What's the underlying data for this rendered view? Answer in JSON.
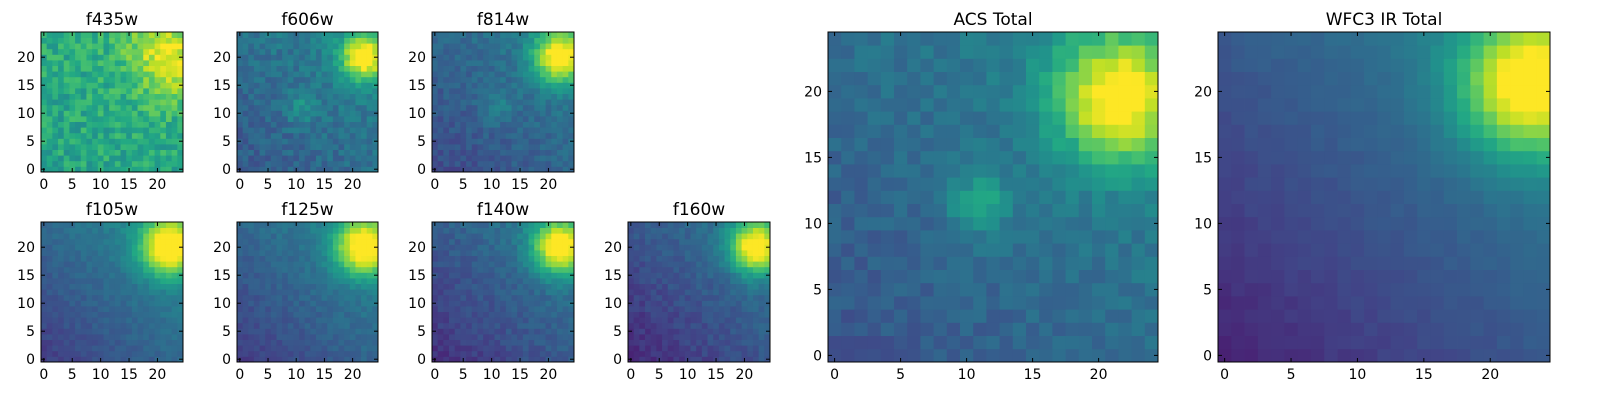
{
  "colormap": "viridis",
  "background_color": "#ffffff",
  "chart_data": [
    {
      "type": "heatmap",
      "title": "f435w",
      "xlabel": "",
      "ylabel": "",
      "xlim": [
        -0.5,
        24.5
      ],
      "ylim": [
        -0.5,
        24.5
      ],
      "xticks": [
        0,
        5,
        10,
        15,
        20
      ],
      "yticks": [
        0,
        5,
        10,
        15,
        20
      ],
      "shape": [
        25,
        25
      ],
      "description_of_values": "normalized intensity 0-1, noisy, brighter toward upper-right",
      "features": [
        {
          "cx": 22,
          "cy": 20,
          "sigma": 5,
          "amp": 0.35
        }
      ],
      "base": 0.58,
      "gradient": 0.05,
      "noise": 0.22,
      "seed": 11
    },
    {
      "type": "heatmap",
      "title": "f606w",
      "xlabel": "",
      "ylabel": "",
      "xlim": [
        -0.5,
        24.5
      ],
      "ylim": [
        -0.5,
        24.5
      ],
      "xticks": [
        0,
        5,
        10,
        15,
        20
      ],
      "yticks": [
        0,
        5,
        10,
        15,
        20
      ],
      "shape": [
        25,
        25
      ],
      "features": [
        {
          "cx": 22,
          "cy": 20,
          "sigma": 3,
          "amp": 0.65
        },
        {
          "cx": 11,
          "cy": 11,
          "sigma": 2,
          "amp": 0.15
        }
      ],
      "base": 0.28,
      "gradient": 0.18,
      "noise": 0.14,
      "seed": 23
    },
    {
      "type": "heatmap",
      "title": "f814w",
      "xlabel": "",
      "ylabel": "",
      "xlim": [
        -0.5,
        24.5
      ],
      "ylim": [
        -0.5,
        24.5
      ],
      "xticks": [
        0,
        5,
        10,
        15,
        20
      ],
      "yticks": [
        0,
        5,
        10,
        15,
        20
      ],
      "shape": [
        25,
        25
      ],
      "features": [
        {
          "cx": 22,
          "cy": 20,
          "sigma": 3.2,
          "amp": 0.7
        },
        {
          "cx": 11,
          "cy": 11,
          "sigma": 2,
          "amp": 0.12
        }
      ],
      "base": 0.22,
      "gradient": 0.22,
      "noise": 0.11,
      "seed": 37
    },
    {
      "type": "heatmap",
      "title": "f105w",
      "xlabel": "",
      "ylabel": "",
      "xlim": [
        -0.5,
        24.5
      ],
      "ylim": [
        -0.5,
        24.5
      ],
      "xticks": [
        0,
        5,
        10,
        15,
        20
      ],
      "yticks": [
        0,
        5,
        10,
        15,
        20
      ],
      "shape": [
        25,
        25
      ],
      "features": [
        {
          "cx": 22,
          "cy": 20,
          "sigma": 3.5,
          "amp": 0.7
        }
      ],
      "base": 0.18,
      "gradient": 0.32,
      "noise": 0.07,
      "seed": 41
    },
    {
      "type": "heatmap",
      "title": "f125w",
      "xlabel": "",
      "ylabel": "",
      "xlim": [
        -0.5,
        24.5
      ],
      "ylim": [
        -0.5,
        24.5
      ],
      "xticks": [
        0,
        5,
        10,
        15,
        20
      ],
      "yticks": [
        0,
        5,
        10,
        15,
        20
      ],
      "shape": [
        25,
        25
      ],
      "features": [
        {
          "cx": 22,
          "cy": 20,
          "sigma": 3.5,
          "amp": 0.7
        }
      ],
      "base": 0.18,
      "gradient": 0.3,
      "noise": 0.08,
      "seed": 53
    },
    {
      "type": "heatmap",
      "title": "f140w",
      "xlabel": "",
      "ylabel": "",
      "xlim": [
        -0.5,
        24.5
      ],
      "ylim": [
        -0.5,
        24.5
      ],
      "xticks": [
        0,
        5,
        10,
        15,
        20
      ],
      "yticks": [
        0,
        5,
        10,
        15,
        20
      ],
      "shape": [
        25,
        25
      ],
      "features": [
        {
          "cx": 22,
          "cy": 20,
          "sigma": 3.3,
          "amp": 0.72
        }
      ],
      "base": 0.14,
      "gradient": 0.3,
      "noise": 0.09,
      "seed": 67
    },
    {
      "type": "heatmap",
      "title": "f160w",
      "xlabel": "",
      "ylabel": "",
      "xlim": [
        -0.5,
        24.5
      ],
      "ylim": [
        -0.5,
        24.5
      ],
      "xticks": [
        0,
        5,
        10,
        15,
        20
      ],
      "yticks": [
        0,
        5,
        10,
        15,
        20
      ],
      "shape": [
        25,
        25
      ],
      "features": [
        {
          "cx": 22,
          "cy": 20,
          "sigma": 3.2,
          "amp": 0.72
        }
      ],
      "base": 0.12,
      "gradient": 0.3,
      "noise": 0.09,
      "seed": 79
    },
    {
      "type": "heatmap",
      "title": "ACS Total",
      "xlabel": "",
      "ylabel": "",
      "xlim": [
        -0.5,
        24.5
      ],
      "ylim": [
        -0.5,
        24.5
      ],
      "xticks": [
        0,
        5,
        10,
        15,
        20
      ],
      "yticks": [
        0,
        5,
        10,
        15,
        20
      ],
      "shape": [
        25,
        25
      ],
      "features": [
        {
          "cx": 21.5,
          "cy": 19.5,
          "sigma": 3.4,
          "amp": 0.65
        },
        {
          "cx": 11,
          "cy": 11.5,
          "sigma": 1.6,
          "amp": 0.25
        }
      ],
      "base": 0.26,
      "gradient": 0.2,
      "noise": 0.1,
      "seed": 97
    },
    {
      "type": "heatmap",
      "title": "WFC3 IR Total",
      "xlabel": "",
      "ylabel": "",
      "xlim": [
        -0.5,
        24.5
      ],
      "ylim": [
        -0.5,
        24.5
      ],
      "xticks": [
        0,
        5,
        10,
        15,
        20
      ],
      "yticks": [
        0,
        5,
        10,
        15,
        20
      ],
      "shape": [
        25,
        25
      ],
      "features": [
        {
          "cx": 23,
          "cy": 20.5,
          "sigma": 3.6,
          "amp": 0.7
        }
      ],
      "base": 0.1,
      "gradient": 0.36,
      "noise": 0.035,
      "seed": 113
    }
  ]
}
